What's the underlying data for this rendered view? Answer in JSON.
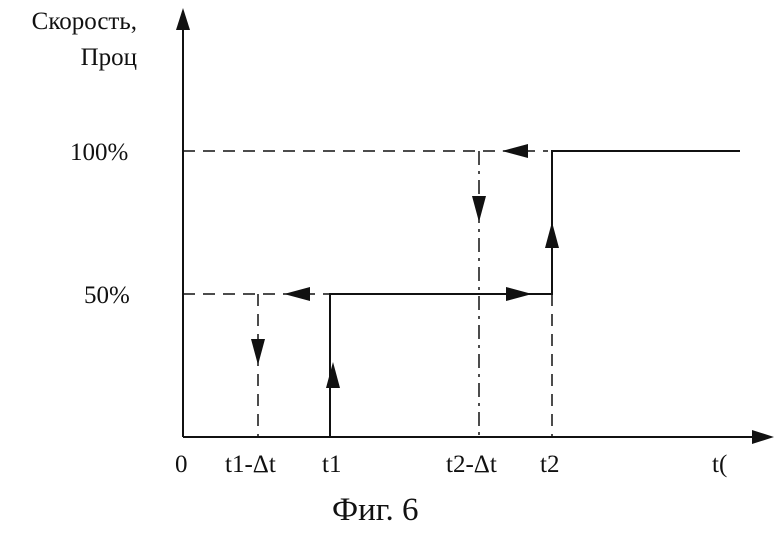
{
  "y_axis_label": [
    "Скорость,",
    "Проц"
  ],
  "y_ticks": [
    "100%",
    "50%"
  ],
  "x_ticks": [
    "0",
    "t1-Δt",
    "t1",
    "t2-Δt",
    "t2"
  ],
  "x_axis_label": "t(",
  "caption": "Фиг. 6",
  "color": "#111111"
}
